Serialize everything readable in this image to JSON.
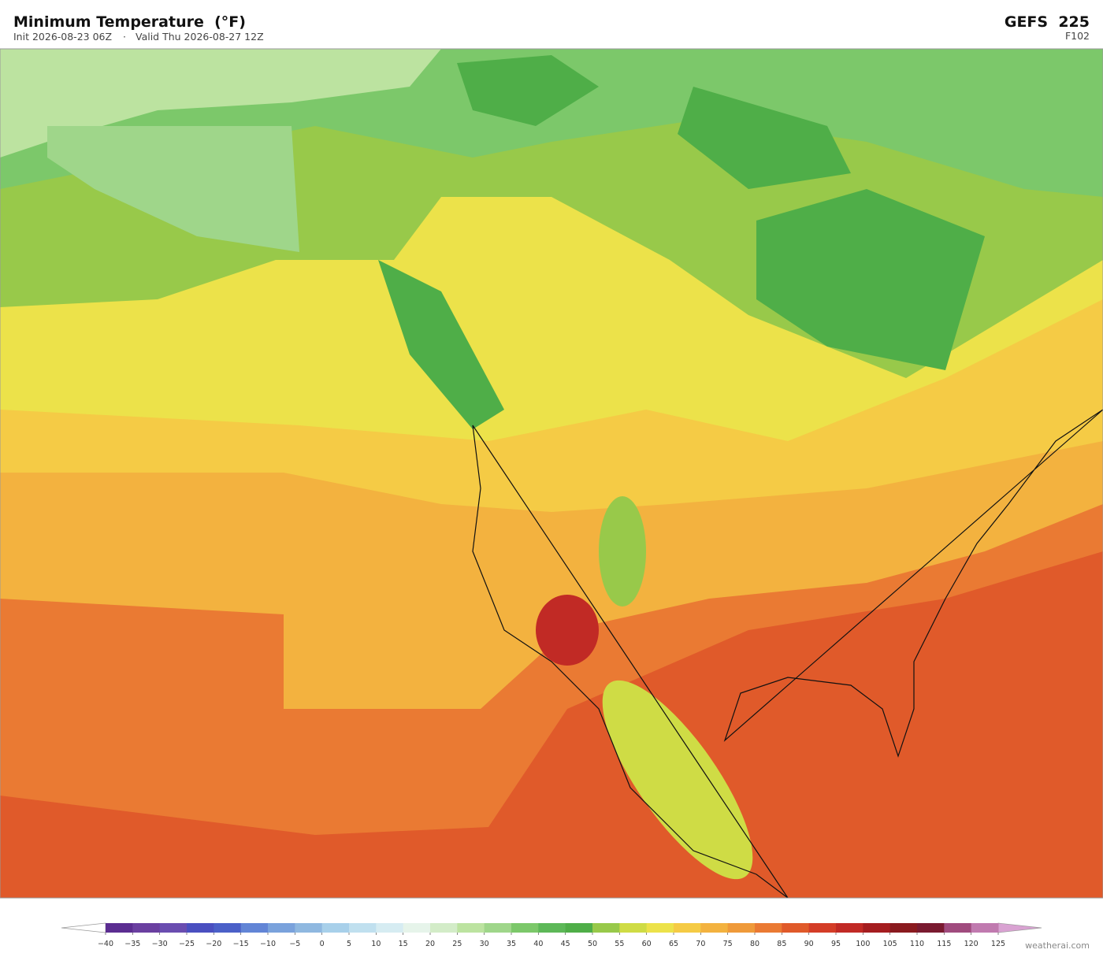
{
  "header": {
    "title": "Minimum Temperature  (°F)",
    "init": "Init 2026-08-23 06Z",
    "separator": "·",
    "valid": "Valid Thu 2026-08-27 12Z",
    "model": "GEFS  225",
    "forecast_hour": "F102"
  },
  "colorbar": {
    "labels": [
      "−40",
      "−35",
      "−30",
      "−25",
      "−20",
      "−15",
      "−10",
      "−5",
      "0",
      "5",
      "10",
      "15",
      "20",
      "25",
      "30",
      "35",
      "40",
      "45",
      "50",
      "55",
      "60",
      "65",
      "70",
      "75",
      "80",
      "85",
      "90",
      "95",
      "100",
      "105",
      "110",
      "115",
      "120",
      "125"
    ],
    "colors": [
      "#5b2d91",
      "#6a3fa0",
      "#6a4db0",
      "#4a4fc0",
      "#4b60c8",
      "#6285d6",
      "#7aa2dc",
      "#8fb8e0",
      "#a8d0ea",
      "#c0e0ef",
      "#d6ecf2",
      "#e6f4ea",
      "#d3ecc8",
      "#bce3a0",
      "#9fd68a",
      "#7cc86a",
      "#5db858",
      "#4fae48",
      "#98c94a",
      "#cfdc45",
      "#ece24a",
      "#f5cb45",
      "#f3b23f",
      "#ef9a3a",
      "#ea7a33",
      "#e05a2a",
      "#d43d27",
      "#c12a25",
      "#a51d20",
      "#8a1a1f",
      "#7a1a30",
      "#a04b7e",
      "#c07aaf"
    ],
    "under_color": "#ffffff",
    "over_color": "#d9a2d2"
  },
  "footer": {
    "watermark": "weatherai.com"
  }
}
